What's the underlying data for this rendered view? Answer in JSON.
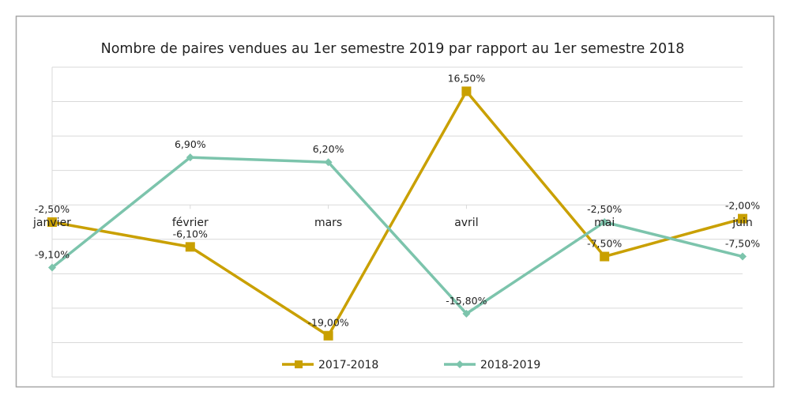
{
  "chart_data": {
    "type": "line",
    "title": "Nombre de paires vendues au 1er semestre 2019 par rapport au 1er semestre 2018",
    "categories": [
      "janvier",
      "février",
      "mars",
      "avril",
      "mai",
      "juin"
    ],
    "series": [
      {
        "name": "2017-2018",
        "values": [
          -2.5,
          -6.1,
          -19.0,
          16.5,
          -7.5,
          -2.0
        ],
        "labels": [
          "-2,50%",
          "-6,10%",
          "-19,00%",
          "16,50%",
          "-7,50%",
          "-2,00%"
        ],
        "color": "#C9A000",
        "marker": "square"
      },
      {
        "name": "2018-2019",
        "values": [
          -9.1,
          6.9,
          6.2,
          -15.8,
          -2.5,
          -7.5
        ],
        "labels": [
          "-9,10%",
          "6,90%",
          "6,20%",
          "-15,80%",
          "-2,50%",
          "-7,50%"
        ],
        "color": "#7CC4AC",
        "marker": "diamond"
      }
    ],
    "ylim": [
      -25,
      20
    ],
    "ytick_step": 5,
    "y_tick_labels_shown": false,
    "grid": true,
    "legend": "bottom"
  }
}
